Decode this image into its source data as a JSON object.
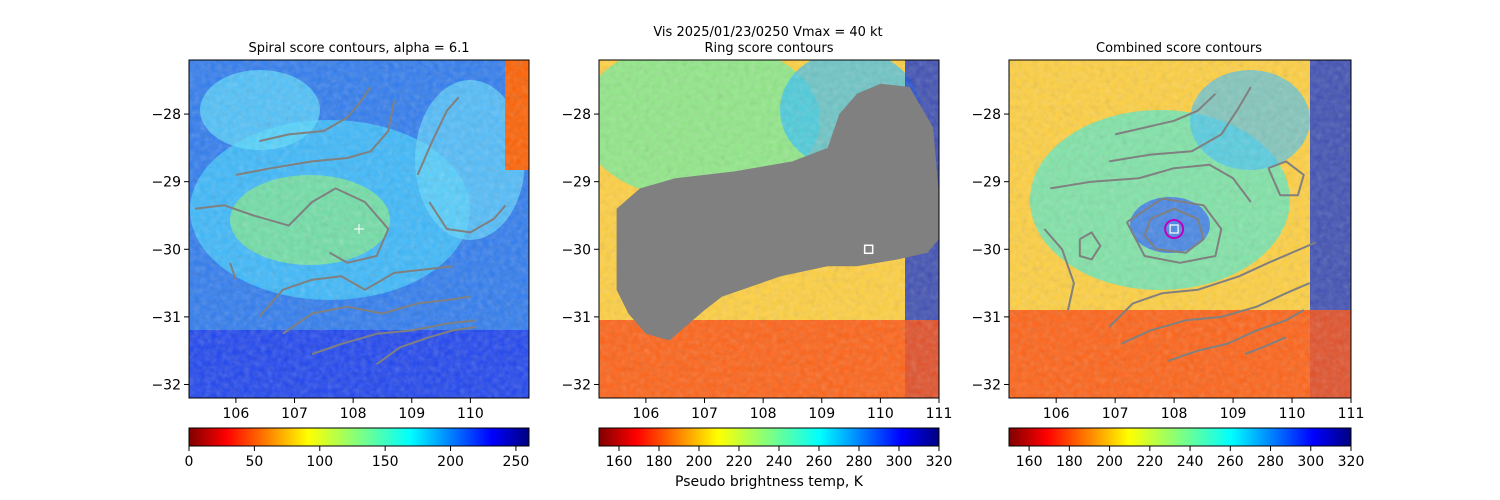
{
  "suptitle_line": "Vis  2025/01/23/0250    Vmax = 40 kt",
  "colors": {
    "contour": "#808080",
    "mask": "#808080",
    "center_circle": "#c000c0",
    "marker": "#ffffff"
  },
  "chart_data": [
    {
      "type": "heatmap",
      "title": "Spiral score contours, alpha =  6.1",
      "colormap": "jet_r",
      "xlim": [
        105.2,
        111.0
      ],
      "ylim": [
        -32.2,
        -27.2
      ],
      "x_ticks": [
        "106",
        "107",
        "108",
        "109",
        "110"
      ],
      "y_ticks": [
        "−28",
        "−29",
        "−30",
        "−31",
        "−32"
      ],
      "x_tick_values": [
        106,
        107,
        108,
        109,
        110
      ],
      "y_tick_values": [
        -28,
        -29,
        -30,
        -31,
        -32
      ],
      "colorbar": {
        "ticks": [
          "0",
          "50",
          "100",
          "150",
          "200",
          "250"
        ],
        "tick_values": [
          0,
          50,
          100,
          150,
          200,
          250
        ],
        "range": [
          0,
          260
        ],
        "label": ""
      },
      "marker": {
        "kind": "plus",
        "x": 108.1,
        "y": -29.7
      },
      "contours": [
        [
          [
            106.4,
            -28.4
          ],
          [
            106.9,
            -28.3
          ],
          [
            107.5,
            -28.25
          ],
          [
            107.9,
            -28.05
          ],
          [
            108.1,
            -27.85
          ],
          [
            108.3,
            -27.6
          ]
        ],
        [
          [
            106.0,
            -28.9
          ],
          [
            106.6,
            -28.8
          ],
          [
            107.3,
            -28.7
          ],
          [
            107.9,
            -28.65
          ],
          [
            108.3,
            -28.55
          ],
          [
            108.6,
            -28.25
          ],
          [
            108.7,
            -27.8
          ]
        ],
        [
          [
            105.3,
            -29.4
          ],
          [
            105.8,
            -29.35
          ],
          [
            106.3,
            -29.5
          ],
          [
            106.9,
            -29.65
          ],
          [
            107.3,
            -29.3
          ],
          [
            107.7,
            -29.1
          ],
          [
            108.2,
            -29.3
          ],
          [
            108.6,
            -29.7
          ],
          [
            108.4,
            -30.1
          ],
          [
            107.9,
            -30.2
          ],
          [
            107.6,
            -30.05
          ]
        ],
        [
          [
            105.9,
            -30.2
          ],
          [
            106.0,
            -30.45
          ]
        ],
        [
          [
            106.4,
            -31.0
          ],
          [
            106.8,
            -30.6
          ],
          [
            107.3,
            -30.45
          ],
          [
            107.8,
            -30.4
          ],
          [
            108.2,
            -30.6
          ],
          [
            108.7,
            -30.35
          ],
          [
            109.2,
            -30.3
          ],
          [
            109.7,
            -30.25
          ]
        ],
        [
          [
            106.8,
            -31.25
          ],
          [
            107.3,
            -30.95
          ],
          [
            107.9,
            -30.85
          ],
          [
            108.5,
            -30.95
          ],
          [
            109.1,
            -30.8
          ],
          [
            109.6,
            -30.75
          ],
          [
            110.0,
            -30.7
          ]
        ],
        [
          [
            107.3,
            -31.55
          ],
          [
            107.8,
            -31.4
          ],
          [
            108.4,
            -31.25
          ],
          [
            109.0,
            -31.2
          ],
          [
            109.6,
            -31.1
          ],
          [
            110.1,
            -31.05
          ]
        ],
        [
          [
            108.4,
            -31.7
          ],
          [
            108.8,
            -31.45
          ],
          [
            109.3,
            -31.3
          ],
          [
            109.7,
            -31.2
          ],
          [
            110.1,
            -31.15
          ]
        ],
        [
          [
            109.1,
            -28.9
          ],
          [
            109.35,
            -28.4
          ],
          [
            109.6,
            -27.95
          ],
          [
            109.8,
            -27.75
          ]
        ],
        [
          [
            109.3,
            -29.3
          ],
          [
            109.6,
            -29.7
          ],
          [
            110.0,
            -29.75
          ],
          [
            110.4,
            -29.55
          ],
          [
            110.6,
            -29.35
          ]
        ]
      ]
    },
    {
      "type": "heatmap",
      "title": "Ring score contours",
      "colormap": "jet_r",
      "xlim": [
        105.2,
        111.0
      ],
      "ylim": [
        -32.2,
        -27.2
      ],
      "x_ticks": [
        "106",
        "107",
        "108",
        "109",
        "110",
        "111"
      ],
      "y_ticks": [
        "−28",
        "−29",
        "−30",
        "−31",
        "−32"
      ],
      "x_tick_values": [
        106,
        107,
        108,
        109,
        110,
        111
      ],
      "y_tick_values": [
        -28,
        -29,
        -30,
        -31,
        -32
      ],
      "colorbar": {
        "ticks": [
          "160",
          "180",
          "200",
          "220",
          "240",
          "260",
          "280",
          "300",
          "320"
        ],
        "tick_values": [
          160,
          180,
          200,
          220,
          240,
          260,
          280,
          300,
          320
        ],
        "range": [
          150,
          320
        ],
        "label": "Pseudo brightness temp, K"
      },
      "marker": {
        "kind": "square",
        "x": 109.8,
        "y": -30.0
      },
      "mask": [
        [
          105.5,
          -30.1
        ],
        [
          105.5,
          -29.4
        ],
        [
          105.9,
          -29.1
        ],
        [
          106.5,
          -28.95
        ],
        [
          107.5,
          -28.85
        ],
        [
          108.5,
          -28.7
        ],
        [
          109.1,
          -28.5
        ],
        [
          109.3,
          -28.0
        ],
        [
          109.6,
          -27.7
        ],
        [
          110.0,
          -27.55
        ],
        [
          110.5,
          -27.6
        ],
        [
          110.9,
          -28.2
        ],
        [
          111.0,
          -29.2
        ],
        [
          111.0,
          -29.85
        ],
        [
          110.8,
          -30.05
        ],
        [
          110.3,
          -30.15
        ],
        [
          109.6,
          -30.25
        ],
        [
          109.1,
          -30.25
        ],
        [
          108.3,
          -30.4
        ],
        [
          107.8,
          -30.55
        ],
        [
          107.3,
          -30.7
        ],
        [
          107.0,
          -30.9
        ],
        [
          106.6,
          -31.2
        ],
        [
          106.4,
          -31.35
        ],
        [
          106.0,
          -31.25
        ],
        [
          105.7,
          -30.95
        ],
        [
          105.5,
          -30.6
        ]
      ]
    },
    {
      "type": "heatmap",
      "title": "Combined score contours",
      "colormap": "jet_r",
      "xlim": [
        105.2,
        111.0
      ],
      "ylim": [
        -32.2,
        -27.2
      ],
      "x_ticks": [
        "106",
        "107",
        "108",
        "109",
        "110",
        "111"
      ],
      "y_ticks": [
        "−28",
        "−29",
        "−30",
        "−31",
        "−32"
      ],
      "x_tick_values": [
        106,
        107,
        108,
        109,
        110,
        111
      ],
      "y_tick_values": [
        -28,
        -29,
        -30,
        -31,
        -32
      ],
      "colorbar": {
        "ticks": [
          "160",
          "180",
          "200",
          "220",
          "240",
          "260",
          "280",
          "300",
          "320"
        ],
        "tick_values": [
          160,
          180,
          200,
          220,
          240,
          260,
          280,
          300,
          320
        ],
        "range": [
          150,
          320
        ],
        "label": ""
      },
      "marker": {
        "kind": "circle",
        "x": 108.0,
        "y": -29.7
      },
      "contours": [
        [
          [
            107.0,
            -28.3
          ],
          [
            107.5,
            -28.2
          ],
          [
            108.0,
            -28.1
          ],
          [
            108.4,
            -27.95
          ],
          [
            108.7,
            -27.7
          ]
        ],
        [
          [
            106.9,
            -28.7
          ],
          [
            107.6,
            -28.6
          ],
          [
            108.3,
            -28.55
          ],
          [
            108.8,
            -28.3
          ],
          [
            109.1,
            -27.9
          ],
          [
            109.3,
            -27.6
          ]
        ],
        [
          [
            105.9,
            -29.1
          ],
          [
            106.6,
            -29.0
          ],
          [
            107.4,
            -28.95
          ],
          [
            108.0,
            -28.8
          ],
          [
            108.6,
            -28.75
          ],
          [
            109.0,
            -28.95
          ],
          [
            109.3,
            -29.3
          ]
        ],
        [
          [
            107.6,
            -29.55
          ],
          [
            108.0,
            -29.4
          ],
          [
            108.4,
            -29.55
          ],
          [
            108.5,
            -29.85
          ],
          [
            108.2,
            -30.05
          ],
          [
            107.7,
            -30.0
          ],
          [
            107.5,
            -29.8
          ],
          [
            107.6,
            -29.55
          ]
        ],
        [
          [
            107.2,
            -29.6
          ],
          [
            107.8,
            -29.25
          ],
          [
            108.5,
            -29.35
          ],
          [
            108.8,
            -29.7
          ],
          [
            108.7,
            -30.1
          ],
          [
            108.1,
            -30.2
          ],
          [
            107.5,
            -30.1
          ],
          [
            107.2,
            -29.6
          ]
        ],
        [
          [
            106.4,
            -29.85
          ],
          [
            106.6,
            -29.75
          ],
          [
            106.75,
            -29.95
          ],
          [
            106.6,
            -30.15
          ],
          [
            106.4,
            -30.1
          ],
          [
            106.4,
            -29.85
          ]
        ],
        [
          [
            105.8,
            -29.7
          ],
          [
            106.1,
            -30.0
          ],
          [
            106.3,
            -30.5
          ],
          [
            106.2,
            -30.9
          ]
        ],
        [
          [
            109.6,
            -28.8
          ],
          [
            109.9,
            -28.7
          ],
          [
            110.2,
            -28.9
          ],
          [
            110.1,
            -29.2
          ],
          [
            109.8,
            -29.2
          ],
          [
            109.6,
            -28.8
          ]
        ],
        [
          [
            106.9,
            -31.15
          ],
          [
            107.3,
            -30.8
          ],
          [
            107.8,
            -30.65
          ],
          [
            108.4,
            -30.6
          ],
          [
            109.1,
            -30.4
          ],
          [
            109.6,
            -30.2
          ],
          [
            110.4,
            -29.9
          ]
        ],
        [
          [
            107.1,
            -31.4
          ],
          [
            107.6,
            -31.2
          ],
          [
            108.2,
            -31.05
          ],
          [
            108.8,
            -31.0
          ],
          [
            109.4,
            -30.85
          ],
          [
            109.9,
            -30.65
          ],
          [
            110.3,
            -30.5
          ]
        ],
        [
          [
            107.9,
            -31.65
          ],
          [
            108.4,
            -31.5
          ],
          [
            108.9,
            -31.4
          ],
          [
            109.4,
            -31.2
          ],
          [
            109.9,
            -31.05
          ],
          [
            110.2,
            -30.9
          ]
        ],
        [
          [
            109.2,
            -31.55
          ],
          [
            109.5,
            -31.45
          ],
          [
            109.9,
            -31.3
          ]
        ]
      ]
    }
  ]
}
